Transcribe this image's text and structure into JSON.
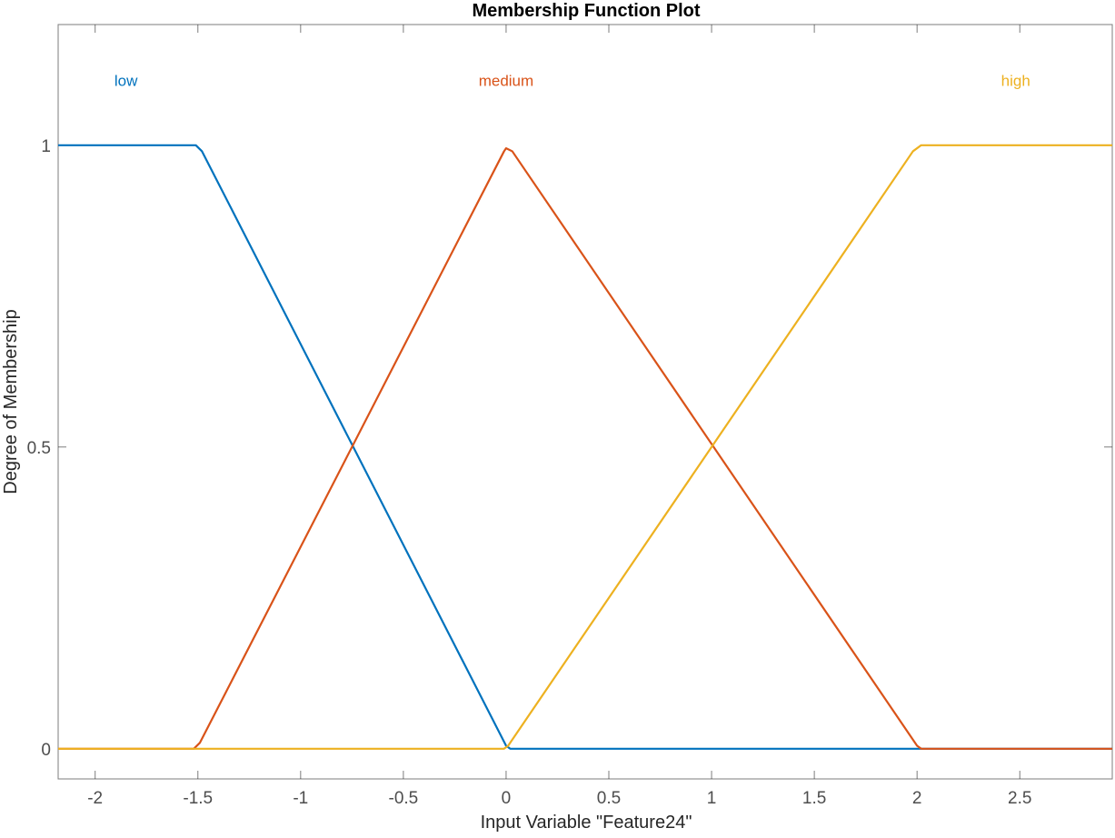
{
  "chart_data": {
    "type": "line",
    "title": "Membership Function Plot",
    "xlabel": "Input Variable \"Feature24\"",
    "ylabel": "Degree of Membership",
    "xlim": [
      -2.18,
      2.95
    ],
    "ylim": [
      -0.05,
      1.2
    ],
    "xticks": [
      -2,
      -1.5,
      -1,
      -0.5,
      0,
      0.5,
      1,
      1.5,
      2,
      2.5
    ],
    "xtick_labels": [
      "-2",
      "-1.5",
      "-1",
      "-0.5",
      "0",
      "0.5",
      "1",
      "1.5",
      "2",
      "2.5"
    ],
    "yticks": [
      0,
      0.5,
      1
    ],
    "ytick_labels": [
      "0",
      "0.5",
      "1"
    ],
    "grid": false,
    "series": [
      {
        "name": "low",
        "color": "#0072bd",
        "label_x": -1.85,
        "label_y": 1.098,
        "x": [
          -2.18,
          -1.51,
          -1.48,
          0.0,
          0.02,
          2.95
        ],
        "y": [
          1,
          1,
          0.99,
          0.005,
          0,
          0
        ]
      },
      {
        "name": "medium",
        "color": "#d95319",
        "label_x": 0.0,
        "label_y": 1.098,
        "x": [
          -2.18,
          -1.52,
          -1.49,
          -0.01,
          0.0,
          0.03,
          2.0,
          2.02,
          2.95
        ],
        "y": [
          0,
          0,
          0.01,
          0.99,
          0.995,
          0.99,
          0.005,
          0,
          0
        ]
      },
      {
        "name": "high",
        "color": "#edb120",
        "label_x": 2.48,
        "label_y": 1.098,
        "x": [
          -2.18,
          -0.01,
          0.01,
          1.98,
          2.02,
          2.95
        ],
        "y": [
          0,
          0,
          0.005,
          0.99,
          1,
          1
        ]
      }
    ]
  }
}
